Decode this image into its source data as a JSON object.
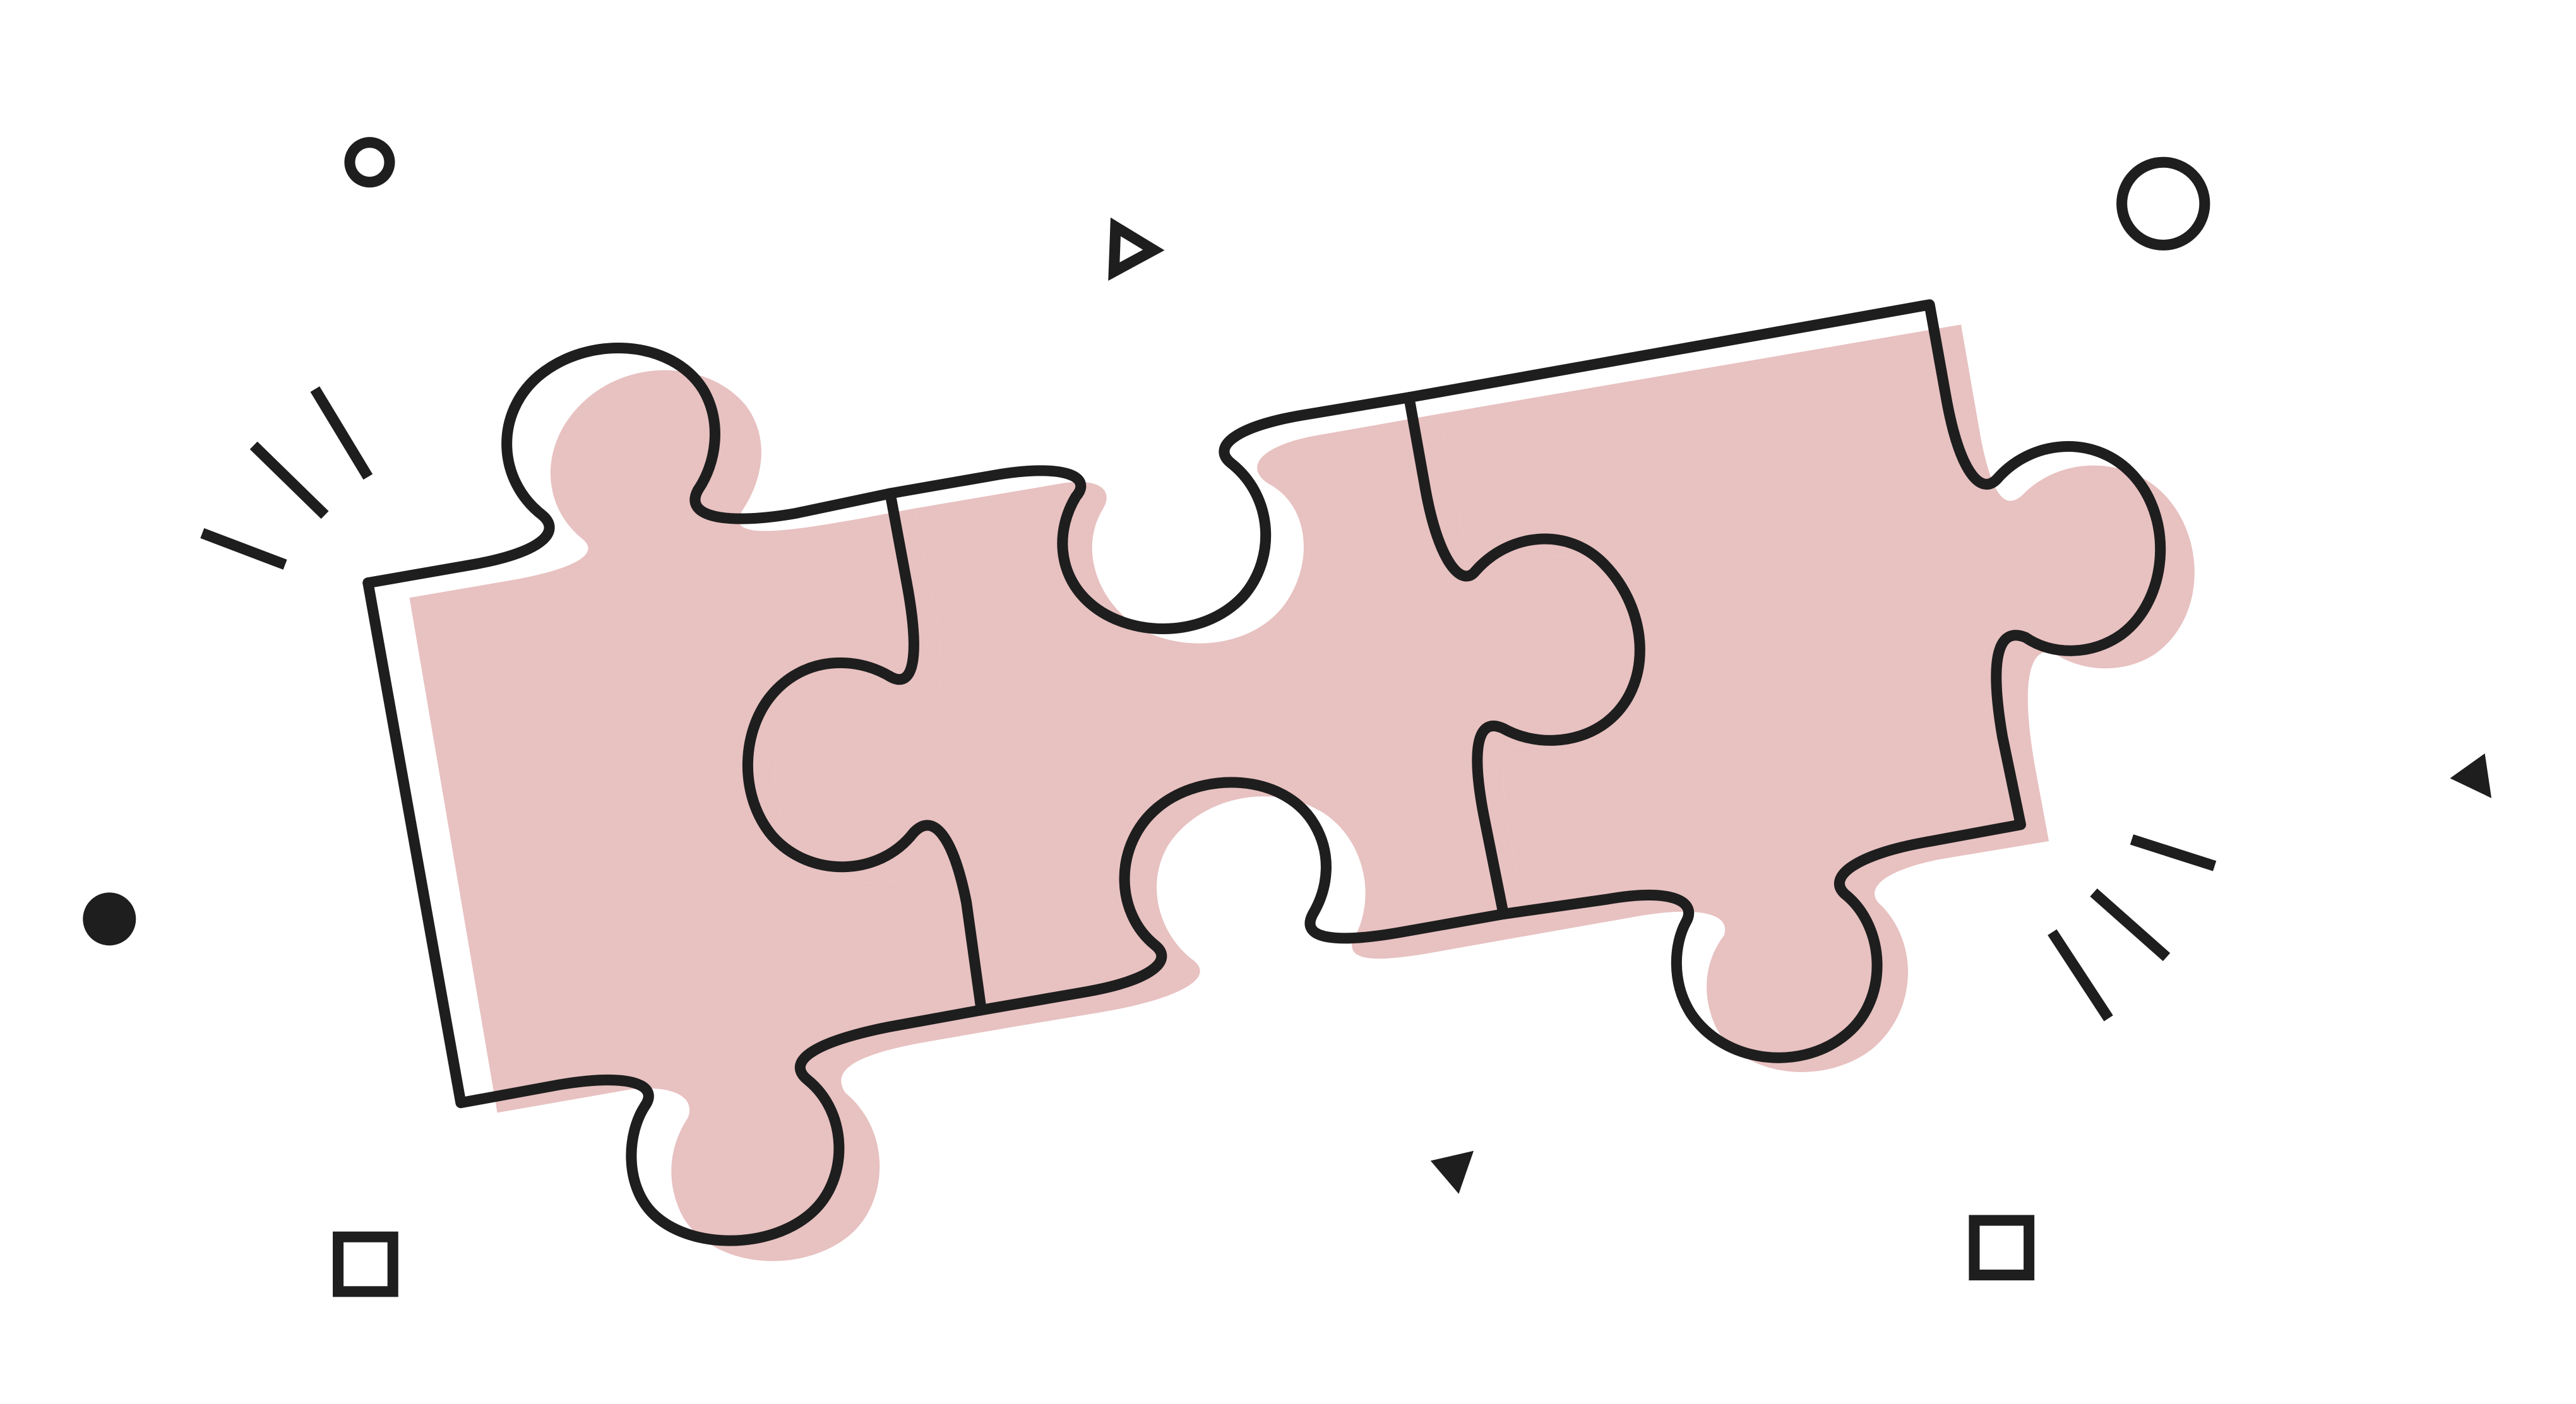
{
  "illustration": {
    "subject": "puzzle-pieces",
    "piece_count": 4,
    "colors": {
      "background": "#ffffff",
      "piece_fill": "#e8c1c1",
      "outline": "#1e1e1e"
    },
    "decorations": {
      "circles": 2,
      "squares": 2,
      "triangles": 3,
      "dots": 1,
      "spark_bursts": 2
    }
  }
}
